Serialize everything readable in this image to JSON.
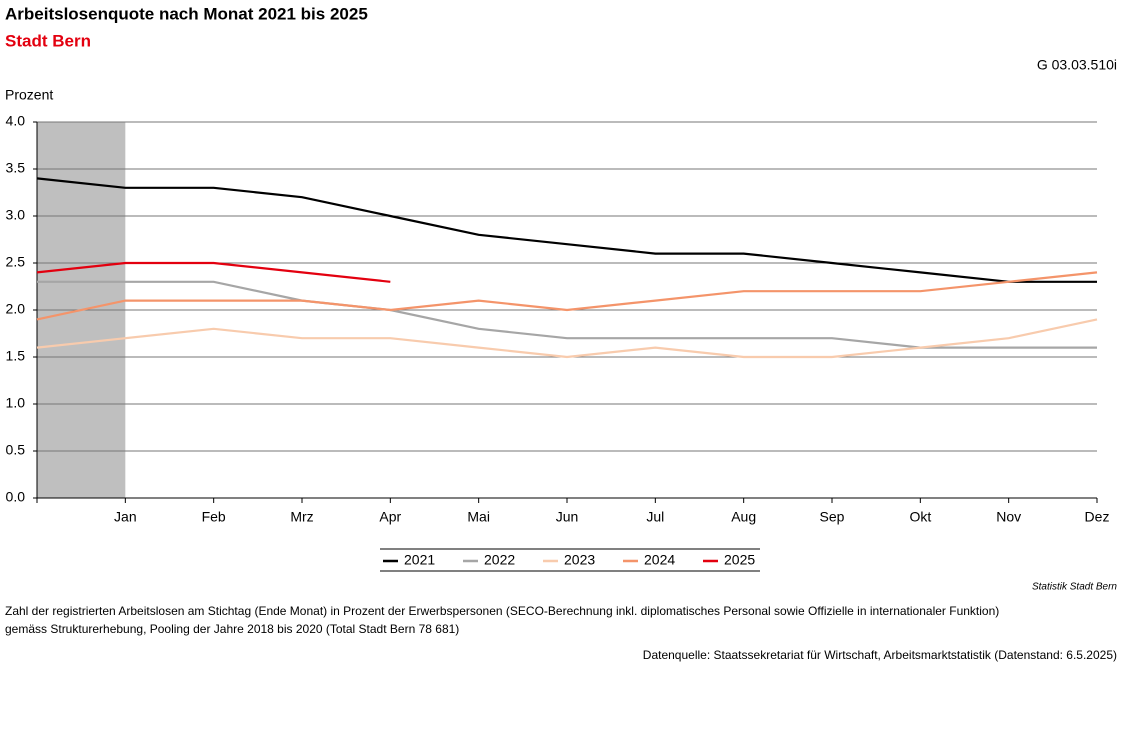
{
  "chart_data": {
    "type": "line",
    "title": "Arbeitslosenquote nach Monat 2021 bis 2025",
    "subtitle": "Stadt Bern",
    "code": "G 03.03.510i",
    "y_label": "Prozent",
    "credit": "Statistik Stadt Bern",
    "footnote": [
      "Zahl der registrierten Arbeitslosen am Stichtag (Ende Monat) in Prozent der Erwerbspersonen (SECO-Berechnung inkl. diplomatisches Personal sowie Offizielle in internationaler Funktion)",
      "gemäss Strukturerhebung, Pooling der Jahre 2018 bis 2020 (Total Stadt Bern 78 681)"
    ],
    "source": "Datenquelle: Staatssekretariat für Wirtschaft, Arbeitsmarktstatistik (Datenstand: 6.5.2025)",
    "categories": [
      null,
      "Jan",
      "Feb",
      "Mrz",
      "Apr",
      "Mai",
      "Jun",
      "Jul",
      "Aug",
      "Sep",
      "Okt",
      "Nov",
      "Dez"
    ],
    "series": [
      {
        "name": "2021",
        "color": "#000000",
        "values": [
          3.4,
          3.3,
          3.3,
          3.2,
          3.0,
          2.8,
          2.7,
          2.6,
          2.6,
          2.5,
          2.4,
          2.3,
          2.3
        ]
      },
      {
        "name": "2022",
        "color": "#a6a6a6",
        "values": [
          2.3,
          2.3,
          2.3,
          2.1,
          2.0,
          1.8,
          1.7,
          1.7,
          1.7,
          1.7,
          1.6,
          1.6,
          1.6
        ]
      },
      {
        "name": "2023",
        "color": "#f8cbad",
        "values": [
          1.6,
          1.7,
          1.8,
          1.7,
          1.7,
          1.6,
          1.5,
          1.6,
          1.5,
          1.5,
          1.6,
          1.7,
          1.9
        ]
      },
      {
        "name": "2024",
        "color": "#f4946a",
        "values": [
          1.9,
          2.1,
          2.1,
          2.1,
          2.0,
          2.1,
          2.0,
          2.1,
          2.2,
          2.2,
          2.2,
          2.3,
          2.4
        ]
      },
      {
        "name": "2025",
        "color": "#e3000f",
        "values": [
          2.4,
          2.5,
          2.5,
          2.4,
          2.3,
          null,
          null,
          null,
          null,
          null,
          null,
          null,
          null
        ]
      }
    ],
    "ylim": [
      0,
      4
    ],
    "yticks": [
      {
        "value": 0,
        "label": "0.0"
      },
      0.5,
      {
        "value": 1,
        "label": "1.0"
      },
      1.5,
      {
        "value": 2,
        "label": "2.0"
      },
      2.5,
      {
        "value": 3,
        "label": "3.0"
      },
      3.5,
      {
        "value": 4,
        "label": "4.0"
      }
    ],
    "grid": true
  }
}
